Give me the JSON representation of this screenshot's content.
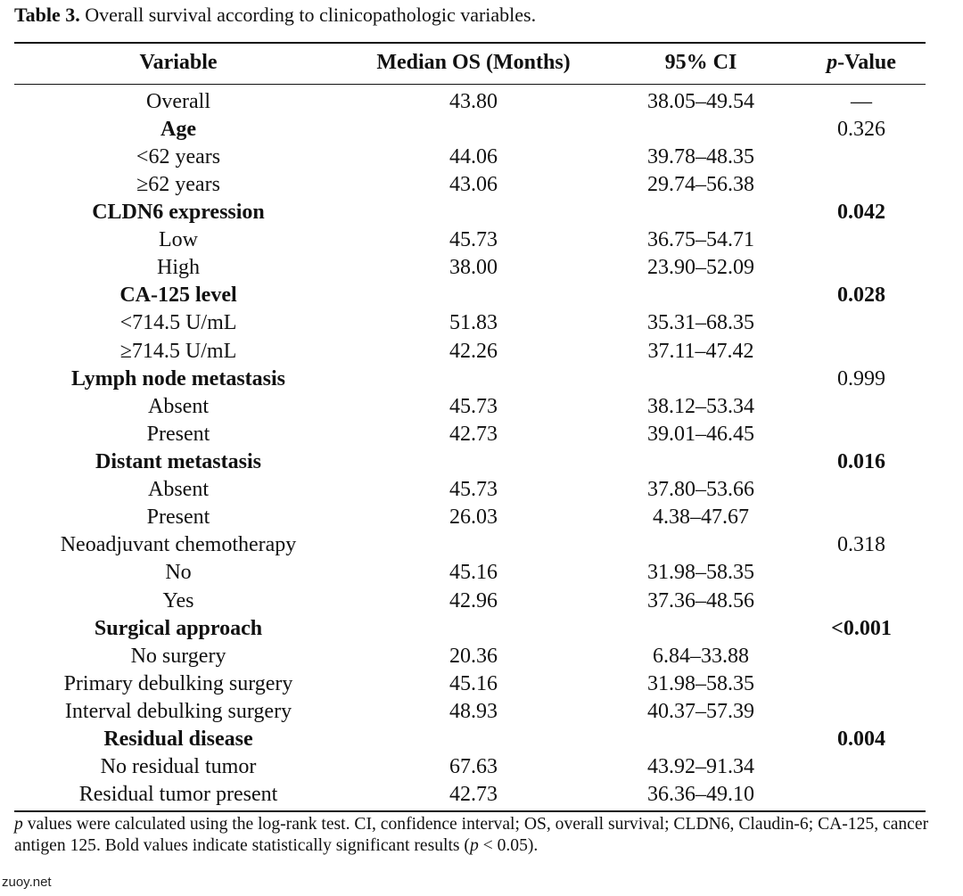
{
  "caption": {
    "label": "Table 3.",
    "text": "Overall survival according to clinicopathologic variables."
  },
  "headers": {
    "variable": "Variable",
    "median": "Median OS (Months)",
    "ci": "95% CI",
    "p_italic": "p",
    "p_rest": "-Value"
  },
  "rows": [
    {
      "label": "Overall",
      "group": false,
      "median": "43.80",
      "ci": "38.05–49.54",
      "p": "—",
      "p_bold": false
    },
    {
      "label": "Age",
      "group": true,
      "median": "",
      "ci": "",
      "p": "0.326",
      "p_bold": false
    },
    {
      "label": "<62 years",
      "group": false,
      "median": "44.06",
      "ci": "39.78–48.35",
      "p": "",
      "p_bold": false
    },
    {
      "label": "≥62 years",
      "group": false,
      "median": "43.06",
      "ci": "29.74–56.38",
      "p": "",
      "p_bold": false
    },
    {
      "label": "CLDN6 expression",
      "group": true,
      "median": "",
      "ci": "",
      "p": "0.042",
      "p_bold": true
    },
    {
      "label": "Low",
      "group": false,
      "median": "45.73",
      "ci": "36.75–54.71",
      "p": "",
      "p_bold": false
    },
    {
      "label": "High",
      "group": false,
      "median": "38.00",
      "ci": "23.90–52.09",
      "p": "",
      "p_bold": false
    },
    {
      "label": "CA-125 level",
      "group": true,
      "median": "",
      "ci": "",
      "p": "0.028",
      "p_bold": true
    },
    {
      "label": "<714.5 U/mL",
      "group": false,
      "median": "51.83",
      "ci": "35.31–68.35",
      "p": "",
      "p_bold": false
    },
    {
      "label": "≥714.5 U/mL",
      "group": false,
      "median": "42.26",
      "ci": "37.11–47.42",
      "p": "",
      "p_bold": false
    },
    {
      "label": "Lymph node metastasis",
      "group": true,
      "median": "",
      "ci": "",
      "p": "0.999",
      "p_bold": false
    },
    {
      "label": "Absent",
      "group": false,
      "median": "45.73",
      "ci": "38.12–53.34",
      "p": "",
      "p_bold": false
    },
    {
      "label": "Present",
      "group": false,
      "median": "42.73",
      "ci": "39.01–46.45",
      "p": "",
      "p_bold": false
    },
    {
      "label": "Distant metastasis",
      "group": true,
      "median": "",
      "ci": "",
      "p": "0.016",
      "p_bold": true
    },
    {
      "label": "Absent",
      "group": false,
      "median": "45.73",
      "ci": "37.80–53.66",
      "p": "",
      "p_bold": false
    },
    {
      "label": "Present",
      "group": false,
      "median": "26.03",
      "ci": "4.38–47.67",
      "p": "",
      "p_bold": false
    },
    {
      "label": "Neoadjuvant chemotherapy",
      "group": false,
      "median": "",
      "ci": "",
      "p": "0.318",
      "p_bold": false
    },
    {
      "label": "No",
      "group": false,
      "median": "45.16",
      "ci": "31.98–58.35",
      "p": "",
      "p_bold": false
    },
    {
      "label": "Yes",
      "group": false,
      "median": "42.96",
      "ci": "37.36–48.56",
      "p": "",
      "p_bold": false
    },
    {
      "label": "Surgical approach",
      "group": true,
      "median": "",
      "ci": "",
      "p": "<0.001",
      "p_bold": true
    },
    {
      "label": "No surgery",
      "group": false,
      "median": "20.36",
      "ci": "6.84–33.88",
      "p": "",
      "p_bold": false
    },
    {
      "label": "Primary debulking surgery",
      "group": false,
      "median": "45.16",
      "ci": "31.98–58.35",
      "p": "",
      "p_bold": false
    },
    {
      "label": "Interval debulking surgery",
      "group": false,
      "median": "48.93",
      "ci": "40.37–57.39",
      "p": "",
      "p_bold": false
    },
    {
      "label": "Residual disease",
      "group": true,
      "median": "",
      "ci": "",
      "p": "0.004",
      "p_bold": true
    },
    {
      "label": "No residual tumor",
      "group": false,
      "median": "67.63",
      "ci": "43.92–91.34",
      "p": "",
      "p_bold": false
    },
    {
      "label": "Residual tumor present",
      "group": false,
      "median": "42.73",
      "ci": "36.36–49.10",
      "p": "",
      "p_bold": false
    }
  ],
  "footnote": {
    "p1": "p",
    "t1": " values were calculated using the log-rank test. CI, confidence interval; OS, overall survival; CLDN6, Claudin-6; CA-125, cancer antigen 125. Bold values indicate statistically significant results (",
    "p2": "p",
    "t2": " < 0.05)."
  },
  "watermark": "zuoy.net"
}
